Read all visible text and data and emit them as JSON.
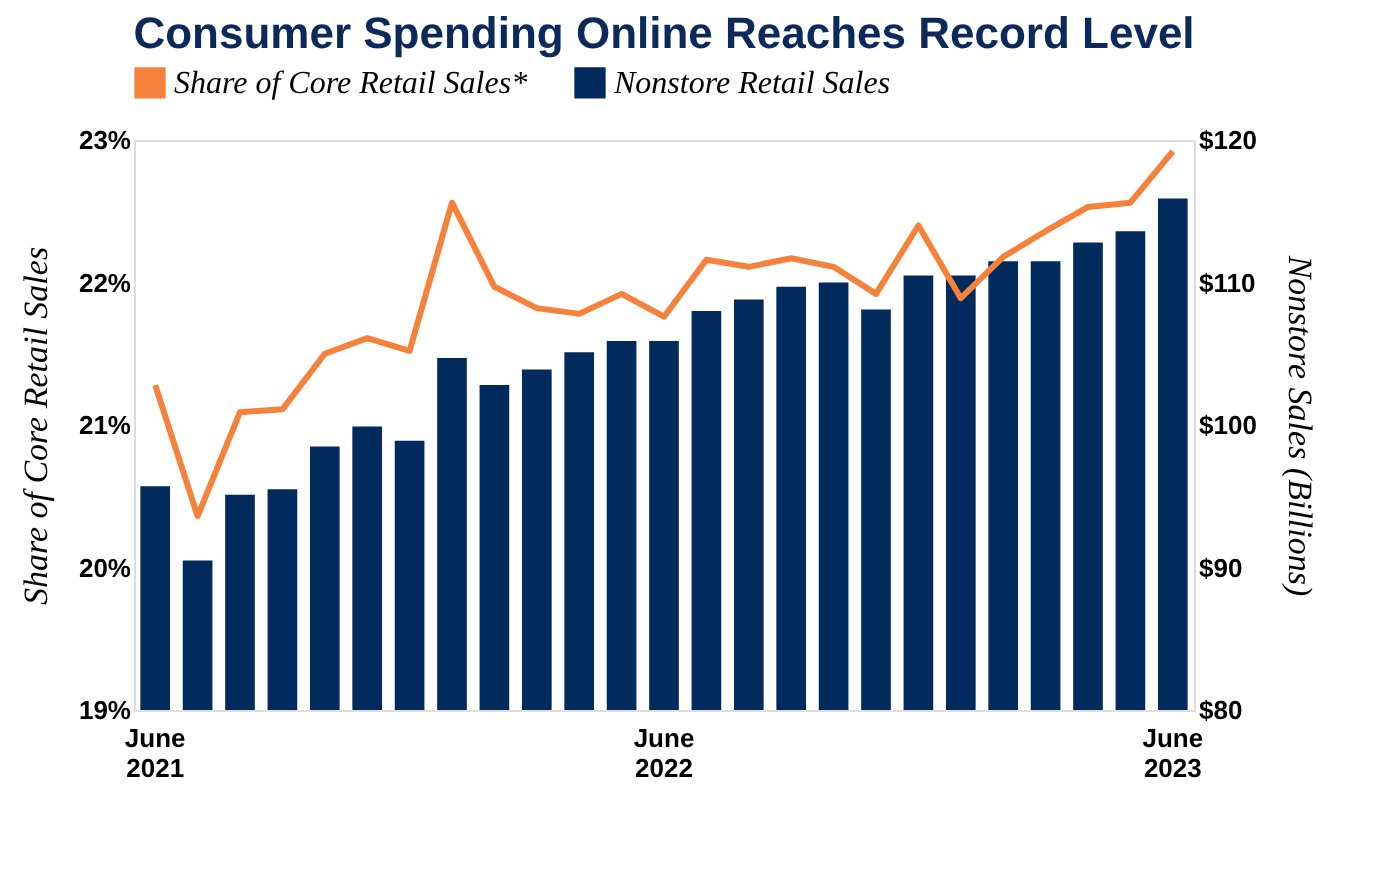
{
  "chart_data": {
    "type": "bar",
    "title": "Consumer Spending Online Reaches Record Level",
    "categories": [
      "June 2021",
      null,
      null,
      null,
      null,
      null,
      null,
      null,
      null,
      null,
      null,
      null,
      "June 2022",
      null,
      null,
      null,
      null,
      null,
      null,
      null,
      null,
      null,
      null,
      null,
      "June 2023"
    ],
    "series": [
      {
        "name": "Share of Core Retail Sales*",
        "type": "line",
        "color": "#f5813a",
        "values": [
          21.28,
          20.36,
          21.09,
          21.11,
          21.5,
          21.61,
          21.52,
          22.56,
          21.97,
          21.82,
          21.78,
          21.92,
          21.76,
          22.16,
          22.11,
          22.17,
          22.11,
          21.92,
          22.4,
          21.89,
          22.18,
          22.36,
          22.53,
          22.56,
          22.92
        ]
      },
      {
        "name": "Nonstore Retail Sales",
        "axis": "y2",
        "color": "#002b5c",
        "values": [
          95.7,
          90.5,
          95.1,
          95.5,
          98.5,
          99.9,
          98.9,
          104.7,
          102.8,
          103.9,
          105.1,
          105.9,
          105.9,
          108.0,
          108.8,
          109.7,
          110.0,
          108.1,
          110.5,
          110.5,
          111.5,
          111.5,
          112.8,
          113.6,
          115.9
        ]
      }
    ],
    "ylabel": "Share of Core Retail Sales",
    "y2label": "Nonstore Sales (Billions)",
    "ylim": [
      19,
      23
    ],
    "yticks": [
      {
        "value": 19,
        "label": "19%"
      },
      {
        "value": 20,
        "label": "20%"
      },
      {
        "value": 21,
        "label": "21%"
      },
      {
        "value": 22,
        "label": "22%"
      },
      {
        "value": 23,
        "label": "23%"
      }
    ],
    "y2lim": [
      80,
      120
    ],
    "y2ticks": [
      {
        "value": 80,
        "label": "$80"
      },
      {
        "value": 90,
        "label": "$90"
      },
      {
        "value": 100,
        "label": "$100"
      },
      {
        "value": 110,
        "label": "$110"
      },
      {
        "value": 120,
        "label": "$120"
      }
    ],
    "legend": "top",
    "grid": false
  }
}
